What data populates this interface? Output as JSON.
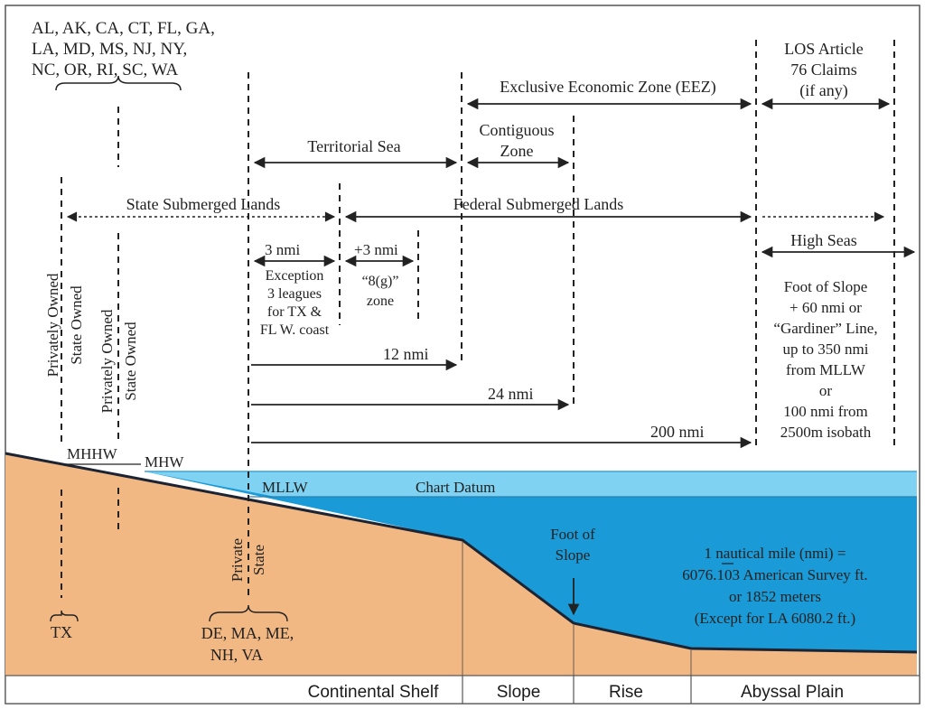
{
  "colors": {
    "land": "#f2b884",
    "water_deep": "#1a9ad6",
    "water_light": "#5cc6ee",
    "chart_datum_band": "#7fd2f2",
    "line": "#222222",
    "border": "#555555"
  },
  "states": {
    "east_gulf_lines": [
      "AL, AK, CA, CT, FL, GA,",
      "LA, MD, MS, NJ, NY,",
      "NC, OR, RI, SC, WA"
    ],
    "tx": "TX",
    "northeast_lines": [
      "DE, MA, ME,",
      "NH,  VA"
    ]
  },
  "zones": {
    "los_lines": [
      "LOS Article",
      "76 Claims",
      "(if any)"
    ],
    "eez": "Exclusive Economic Zone (EEZ)",
    "territorial_sea": "Territorial Sea",
    "contiguous_lines": [
      "Contiguous",
      "Zone"
    ],
    "state_submerged": "State Submerged Lands",
    "federal_submerged": "Federal Submerged Lands",
    "high_seas": "High Seas"
  },
  "distances": {
    "three_nmi": "3 nmi",
    "exception_lines": [
      "Exception",
      "3 leagues",
      "for TX &",
      "FL W. coast"
    ],
    "plus_three_nmi": "+3 nmi",
    "eight_g_lines": [
      "“8(g)”",
      "zone"
    ],
    "twelve_nmi": "12 nmi",
    "twentyfour_nmi": "24 nmi",
    "two_hundred_nmi": "200 nmi"
  },
  "foot_of_slope_note_lines": [
    "Foot of Slope",
    "+ 60 nmi or",
    "“Gardiner” Line,",
    "up to 350 nmi",
    "from MLLW",
    "or",
    "100 nmi from",
    "2500m isobath"
  ],
  "ownership": {
    "col1_privately": "Privately Owned",
    "col1_state": "State Owned",
    "col2_privately": "Privately Owned",
    "col2_state": "State Owned",
    "private": "Private",
    "state": "State"
  },
  "datums": {
    "mhhw": "MHHW",
    "mhw": "MHW",
    "mllw": "MLLW",
    "chart_datum": "Chart Datum"
  },
  "foot_of_slope_label_lines": [
    "Foot of",
    "Slope"
  ],
  "nautical_mile_note_lines": [
    "1 nautical mile (nmi) =",
    "6076.103 American Survey ft.",
    "or 1852 meters",
    "(Except for LA 6080.2 ft.)"
  ],
  "bottom_regions": {
    "shelf": "Continental Shelf",
    "slope": "Slope",
    "rise": "Rise",
    "abyssal": "Abyssal Plain"
  }
}
